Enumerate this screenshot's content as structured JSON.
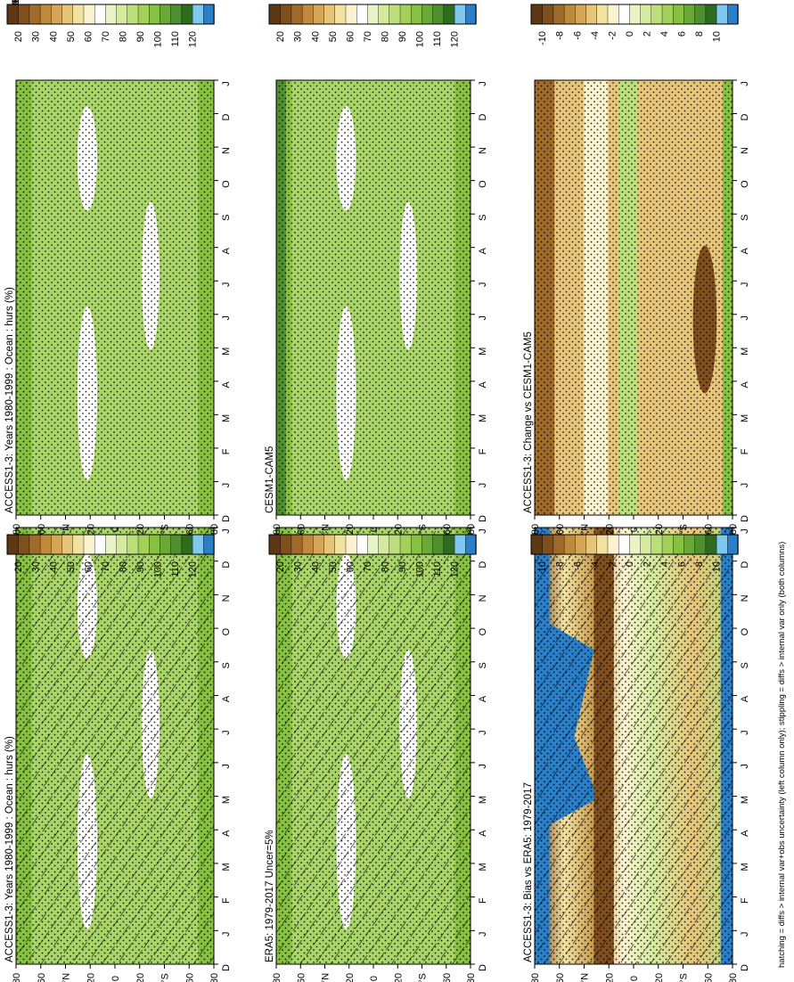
{
  "figure": {
    "footnote": "hatching = diffs > internal var+obs uncertainty (left column only); stippling = diffs > internal var only (both columns)",
    "orientation": "rotated 90 degrees counter-clockwise"
  },
  "colorbars": {
    "absolute": {
      "labels": [
        "120",
        "110",
        "100",
        "90",
        "80",
        "70",
        "60",
        "50",
        "40",
        "30",
        "20"
      ],
      "colors": [
        "#2a7fc9",
        "#7fc8ee",
        "#2e6b1f",
        "#4f8f2f",
        "#6aa83a",
        "#86c141",
        "#a2d05a",
        "#bcdf7c",
        "#d4ea9c",
        "#e8f3c6",
        "#ffffff",
        "#fbf3d0",
        "#f2e2a0",
        "#e6c57a",
        "#d4a656",
        "#bf8a3e",
        "#a06a2a",
        "#7f4f1e",
        "#5e3714"
      ]
    },
    "difference": {
      "labels": [
        "10",
        "8",
        "6",
        "4",
        "2",
        "0",
        "-2",
        "-4",
        "-6",
        "-8",
        "-10"
      ],
      "colors": [
        "#2a7fc9",
        "#7fc8ee",
        "#2e6b1f",
        "#4f8f2f",
        "#6aa83a",
        "#86c141",
        "#a2d05a",
        "#bcdf7c",
        "#d4ea9c",
        "#e8f3c6",
        "#ffffff",
        "#fbf3d0",
        "#f2e2a0",
        "#e6c57a",
        "#d4a656",
        "#bf8a3e",
        "#a06a2a",
        "#7f4f1e",
        "#5e3714"
      ]
    }
  },
  "axes": {
    "months": [
      "D",
      "J",
      "F",
      "M",
      "A",
      "M",
      "J",
      "J",
      "A",
      "S",
      "O",
      "N",
      "D",
      "J"
    ],
    "lat_labels": [
      "80",
      "60",
      "°N",
      "20",
      "0",
      "20",
      "°S",
      "60",
      "80"
    ]
  },
  "chart_data": [
    {
      "type": "heatmap",
      "panel": "top-left",
      "title": "ACCESS1-3: Years 1980-1999 : Ocean : hurs (%)",
      "x_axis": "month",
      "y_axis": "latitude",
      "ylim": [
        -90,
        90
      ],
      "z_units": "%",
      "z_range": [
        20,
        120
      ],
      "overlay": "hatching and stippling",
      "colorbar": "absolute"
    },
    {
      "type": "heatmap",
      "panel": "top-right",
      "title": "ACCESS1-3: Years 1980-1999 : Ocean : hurs (%)",
      "x_axis": "month",
      "y_axis": "latitude",
      "ylim": [
        -90,
        90
      ],
      "z_units": "%",
      "z_range": [
        20,
        120
      ],
      "overlay": "stippling",
      "colorbar": "absolute"
    },
    {
      "type": "heatmap",
      "panel": "middle-left",
      "title": "ERA5: 1979-2017 Uncer=5%",
      "x_axis": "month",
      "y_axis": "latitude",
      "ylim": [
        -90,
        90
      ],
      "z_units": "%",
      "z_range": [
        20,
        120
      ],
      "overlay": "hatching and stippling",
      "colorbar": "absolute"
    },
    {
      "type": "heatmap",
      "panel": "middle-right",
      "title": "CESM1-CAM5",
      "x_axis": "month",
      "y_axis": "latitude",
      "ylim": [
        -90,
        90
      ],
      "z_units": "%",
      "z_range": [
        20,
        120
      ],
      "overlay": "stippling",
      "colorbar": "absolute"
    },
    {
      "type": "heatmap",
      "panel": "bottom-left",
      "title": "ACCESS1-3: Bias vs ERA5: 1979-2017",
      "x_axis": "month",
      "y_axis": "latitude",
      "ylim": [
        -90,
        90
      ],
      "z_units": "%",
      "z_range": [
        -10,
        10
      ],
      "overlay": "hatching and stippling",
      "colorbar": "difference"
    },
    {
      "type": "heatmap",
      "panel": "bottom-right",
      "title": "ACCESS1-3: Change vs CESM1-CAM5",
      "x_axis": "month",
      "y_axis": "latitude",
      "ylim": [
        -90,
        90
      ],
      "z_units": "%",
      "z_range": [
        -10,
        10
      ],
      "overlay": "stippling",
      "colorbar": "difference"
    }
  ]
}
